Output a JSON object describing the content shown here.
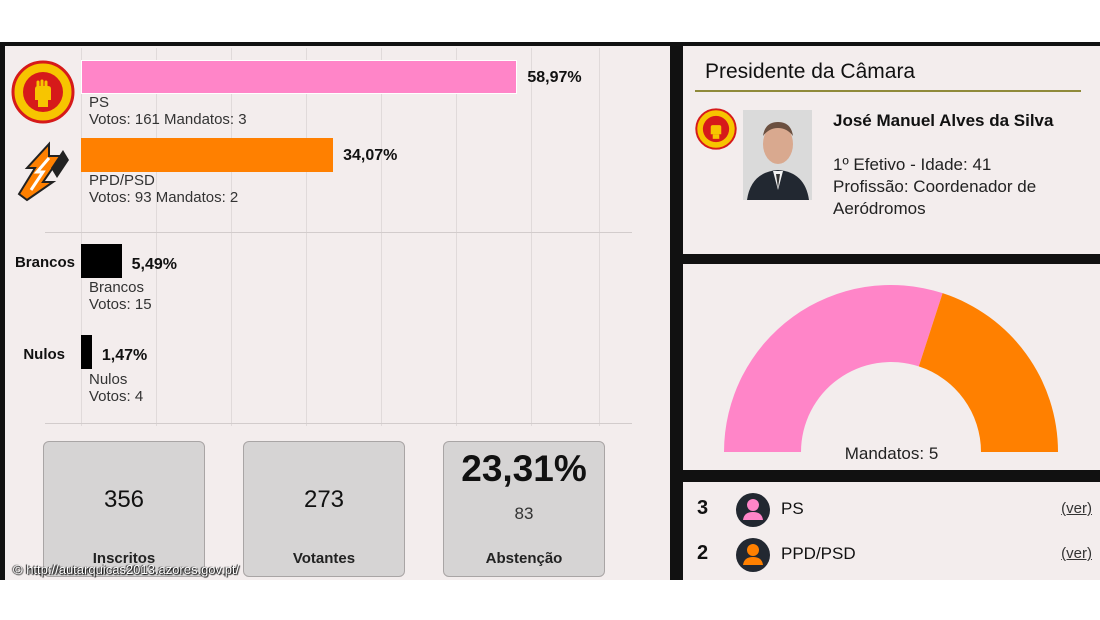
{
  "chart_data": {
    "type": "bar",
    "orientation": "horizontal",
    "categories": [
      "PS",
      "PPD/PSD",
      "Brancos",
      "Nulos"
    ],
    "values": [
      58.97,
      34.07,
      5.49,
      1.47
    ],
    "percent_labels": [
      "58,97%",
      "34,07%",
      "5,49%",
      "1,47%"
    ],
    "colors": [
      "#ff85c8",
      "#ff8000",
      "#000000",
      "#000000"
    ],
    "rows": [
      {
        "category": "PS",
        "row_label": "",
        "name": "PS",
        "details": "Votos: 161 Mandatos: 3",
        "votos": 161,
        "mandatos": 3
      },
      {
        "category": "PPD/PSD",
        "row_label": "",
        "name": "PPD/PSD",
        "details": "Votos: 93 Mandatos: 2",
        "votos": 93,
        "mandatos": 2
      },
      {
        "category": "Brancos",
        "row_label": "Brancos",
        "name": "Brancos",
        "details": "Votos: 15",
        "votos": 15
      },
      {
        "category": "Nulos",
        "row_label": "Nulos",
        "name": "Nulos",
        "details": "Votos: 4",
        "votos": 4
      }
    ],
    "xlim": [
      0,
      100
    ]
  },
  "stats": {
    "inscritos": {
      "value": "356",
      "label": "Inscritos"
    },
    "votantes": {
      "value": "273",
      "label": "Votantes"
    },
    "abstencao": {
      "pct": "23,31%",
      "value": "83",
      "label": "Abstenção"
    }
  },
  "credit": "© http://autarquicas2013.azores.gov.pt/",
  "president": {
    "title": "Presidente da Câmara",
    "name": "José Manuel Alves da Silva",
    "line1": "1º Efetivo - Idade: 41",
    "line2": "Profissão: Coordenador de Aeródromos"
  },
  "seats_chart": {
    "type": "pie",
    "shape": "semicircle",
    "label": "Mandatos: 5",
    "total": 5,
    "series": [
      {
        "name": "PS",
        "value": 3,
        "color": "#ff85c8"
      },
      {
        "name": "PPD/PSD",
        "value": 2,
        "color": "#ff8000"
      }
    ]
  },
  "legend": [
    {
      "seats": "3",
      "party": "PS",
      "link": "(ver)",
      "color": "#ff85c8"
    },
    {
      "seats": "2",
      "party": "PPD/PSD",
      "link": "(ver)",
      "color": "#ff8000"
    }
  ],
  "icons": {
    "ps_logo": "ps-fist-rose-logo",
    "psd_logo": "psd-arrows-logo",
    "person": "person-icon"
  }
}
